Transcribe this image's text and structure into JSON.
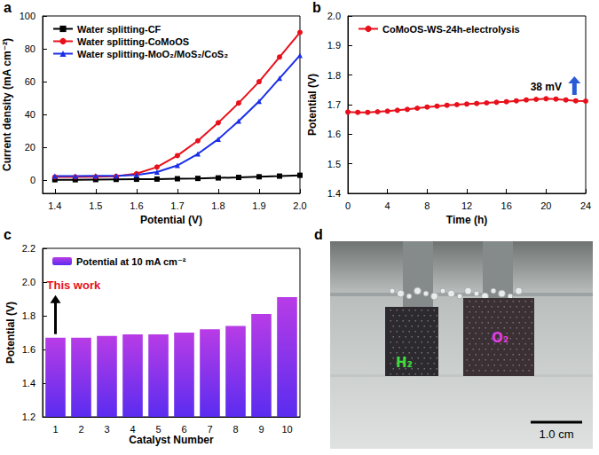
{
  "chart_data": [
    {
      "panel_label": "a",
      "type": "line",
      "x_label": "Potential (V)",
      "y_label": "Current density (mA cm⁻²)",
      "xlim": [
        1.37,
        2.0
      ],
      "xticks": [
        1.4,
        1.5,
        1.6,
        1.7,
        1.8,
        1.9,
        {
          "value": 2,
          "label": "2.0"
        }
      ],
      "ylim": [
        -8,
        100
      ],
      "yticks": [
        0,
        20,
        40,
        60,
        80,
        100
      ],
      "grid": false,
      "legend": "upper left",
      "x": [
        1.4,
        1.45,
        1.5,
        1.55,
        1.6,
        1.65,
        1.7,
        1.75,
        1.8,
        1.85,
        1.9,
        1.95,
        2.0
      ],
      "series": [
        {
          "name": "Water splitting-CF",
          "color": "#000000",
          "marker": "square",
          "values": [
            0.3,
            0.3,
            0.4,
            0.5,
            0.6,
            0.7,
            0.9,
            1.1,
            1.4,
            1.7,
            2.1,
            2.5,
            3.0
          ]
        },
        {
          "name": "Water splitting-CoMoOS",
          "color": "#e8101a",
          "marker": "circle",
          "values": [
            2.0,
            2.0,
            2.1,
            2.4,
            4.0,
            8.0,
            15.0,
            24.0,
            35.0,
            47.0,
            60.0,
            75.0,
            90.0
          ]
        },
        {
          "name": "Water splitting-MoO₂/MoS₂/CoS₂",
          "color": "#1a2ee8",
          "marker": "triangle",
          "values": [
            2.5,
            2.5,
            2.6,
            2.7,
            3.2,
            5.0,
            9.0,
            16.0,
            25.0,
            36.0,
            48.0,
            62.0,
            76.0
          ]
        }
      ]
    },
    {
      "panel_label": "b",
      "type": "line",
      "x_label": "Time (h)",
      "y_label": "Potential (V)",
      "xlim": [
        0,
        24
      ],
      "xticks": [
        0,
        4,
        8,
        12,
        16,
        20,
        24
      ],
      "ylim": [
        1.4,
        2.0
      ],
      "yticks": [
        1.4,
        1.5,
        1.6,
        1.7,
        1.8,
        1.9,
        {
          "value": 2,
          "label": "2.0"
        }
      ],
      "grid": false,
      "legend": "upper left",
      "x": [
        0,
        1,
        2,
        3,
        4,
        5,
        6,
        7,
        8,
        9,
        10,
        11,
        12,
        13,
        14,
        15,
        16,
        17,
        18,
        19,
        20,
        21,
        22,
        23,
        24
      ],
      "series": [
        {
          "name": "CoMoOS-WS-24h-electrolysis",
          "color": "#e8101a",
          "marker": "circle",
          "values": [
            1.675,
            1.674,
            1.674,
            1.676,
            1.678,
            1.681,
            1.684,
            1.688,
            1.692,
            1.695,
            1.698,
            1.7,
            1.702,
            1.704,
            1.706,
            1.708,
            1.71,
            1.713,
            1.716,
            1.718,
            1.72,
            1.719,
            1.716,
            1.713,
            1.712
          ]
        }
      ],
      "annotations": [
        {
          "text": "38 mV",
          "x": 20,
          "y": 1.76
        }
      ]
    },
    {
      "panel_label": "c",
      "type": "bar",
      "x_label": "Catalyst Number",
      "y_label": "Potential (V)",
      "ylim": [
        1.2,
        2.2
      ],
      "yticks": [
        1.2,
        1.4,
        1.6,
        1.8,
        {
          "value": 2,
          "label": "2.0"
        },
        2.2
      ],
      "grid": false,
      "legend": "upper left",
      "categories": [
        "1",
        "2",
        "3",
        "4",
        "5",
        "6",
        "7",
        "8",
        "9",
        "10"
      ],
      "series": [
        {
          "name": "Potential at 10 mA cm⁻²",
          "color": "#b83ce6",
          "values": [
            1.67,
            1.67,
            1.68,
            1.69,
            1.69,
            1.7,
            1.72,
            1.74,
            1.81,
            1.91
          ]
        }
      ],
      "annotations": [
        {
          "text": "This work",
          "x": "1",
          "y": 1.98
        }
      ]
    }
  ],
  "photo": {
    "panel_label": "d",
    "labels": [
      {
        "text": "H₂",
        "color": "#3ddc3d"
      },
      {
        "text": "O₂",
        "color": "#e03ce0"
      }
    ],
    "scale_bar": "1.0 cm"
  }
}
